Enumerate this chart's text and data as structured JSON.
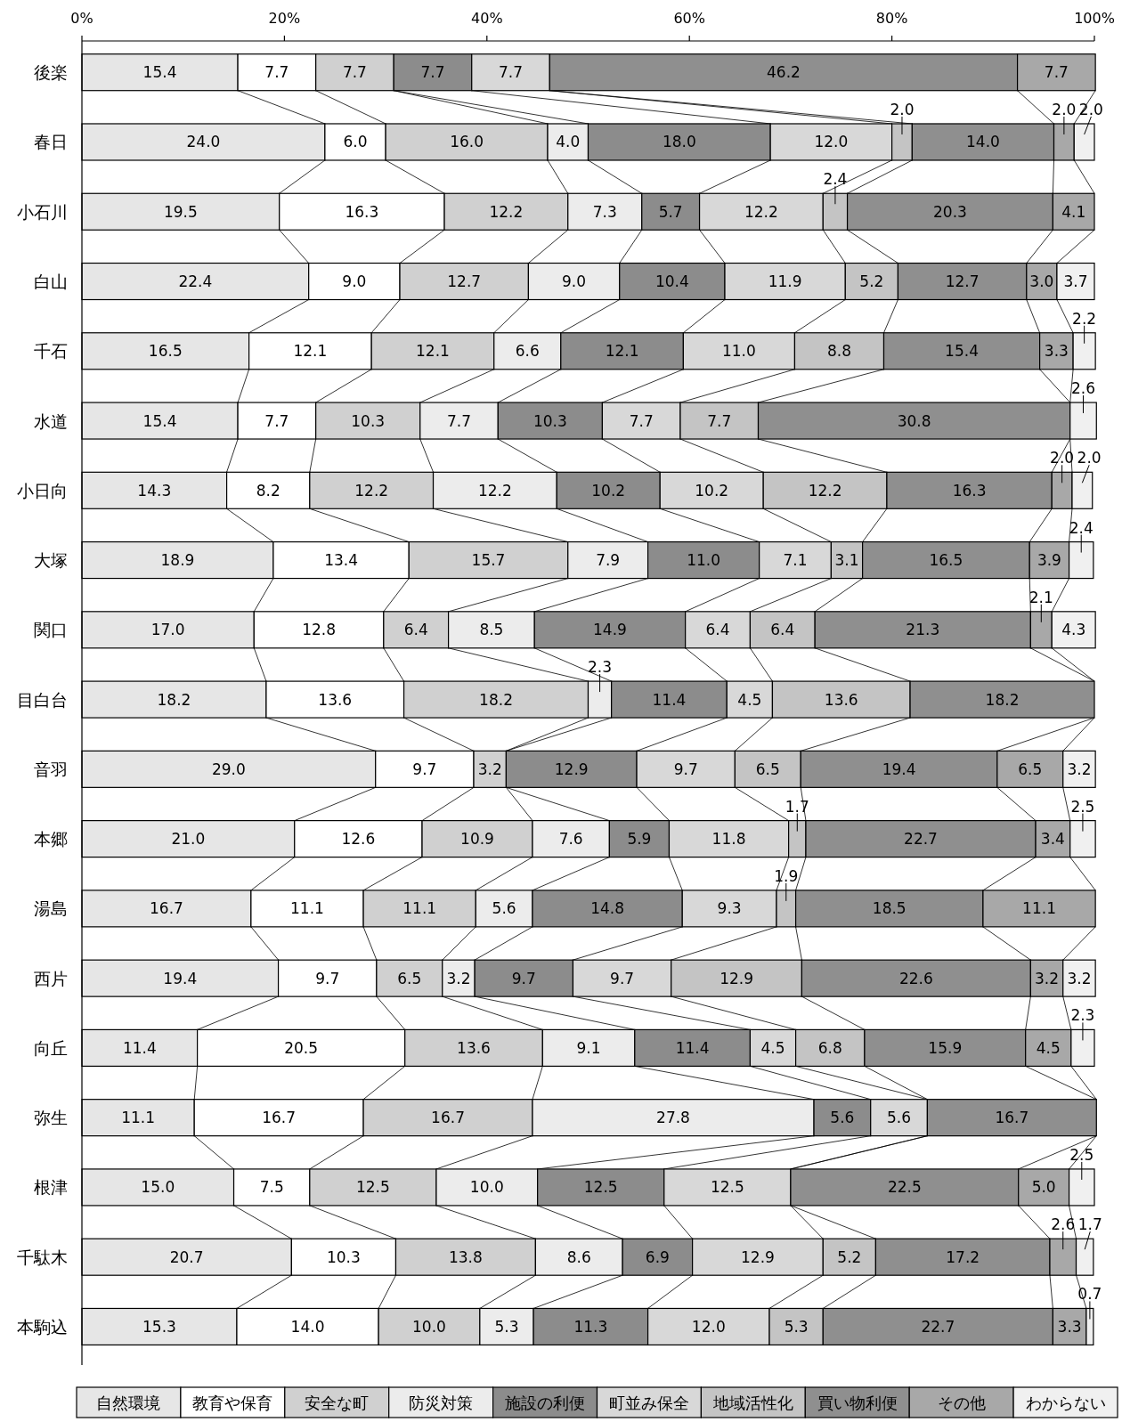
{
  "chart_data": {
    "type": "bar",
    "orientation": "horizontal",
    "stacked": true,
    "legend": "bottom",
    "categories": [
      "後楽",
      "春日",
      "小石川",
      "白山",
      "千石",
      "水道",
      "小日向",
      "大塚",
      "関口",
      "目白台",
      "音羽",
      "本郷",
      "湯島",
      "西片",
      "向丘",
      "弥生",
      "根津",
      "千駄木",
      "本駒込"
    ],
    "xlim": [
      0,
      100
    ],
    "xticks": [
      {
        "value": 0,
        "label": "0%"
      },
      {
        "value": 20,
        "label": "20%"
      },
      {
        "value": 40,
        "label": "40%"
      },
      {
        "value": 60,
        "label": "60%"
      },
      {
        "value": 80,
        "label": "80%"
      },
      {
        "value": 100,
        "label": "100%"
      }
    ],
    "series": [
      {
        "name": "自然環境",
        "color": "#e6e6e6",
        "values": [
          15.4,
          24.0,
          19.5,
          22.4,
          16.5,
          15.4,
          14.3,
          18.9,
          17.0,
          18.2,
          29.0,
          21.0,
          16.7,
          19.4,
          11.4,
          11.1,
          15.0,
          20.7,
          15.3
        ],
        "value_labels": [
          "15.4",
          "24.0",
          "19.5",
          "22.4",
          "16.5",
          "15.4",
          "14.3",
          "18.9",
          "17.0",
          "18.2",
          "29.0",
          "21.0",
          "16.7",
          "19.4",
          "11.4",
          "11.1",
          "15.0",
          "20.7",
          "15.3"
        ]
      },
      {
        "name": "教育や保育",
        "color": "#ffffff",
        "values": [
          7.7,
          6.0,
          16.3,
          9.0,
          12.1,
          7.7,
          8.2,
          13.4,
          12.8,
          13.6,
          9.7,
          12.6,
          11.1,
          9.7,
          20.5,
          16.7,
          7.5,
          10.3,
          14.0
        ],
        "value_labels": [
          "7.7",
          "6.0",
          "16.3",
          "9.0",
          "12.1",
          "7.7",
          "8.2",
          "13.4",
          "12.8",
          "13.6",
          "9.7",
          "12.6",
          "11.1",
          "9.7",
          "20.5",
          "16.7",
          "7.5",
          "10.3",
          "14.0"
        ]
      },
      {
        "name": "安全な町",
        "color": "#d0d0d0",
        "values": [
          7.7,
          16.0,
          12.2,
          12.7,
          12.1,
          10.3,
          12.2,
          15.7,
          6.4,
          18.2,
          3.2,
          10.9,
          11.1,
          6.5,
          13.6,
          16.7,
          12.5,
          13.8,
          10.0
        ],
        "value_labels": [
          "7.7",
          "16.0",
          "12.2",
          "12.7",
          "12.1",
          "10.3",
          "12.2",
          "15.7",
          "6.4",
          "18.2",
          "3.2",
          "10.9",
          "11.1",
          "6.5",
          "13.6",
          "16.7",
          "12.5",
          "13.8",
          "10.0"
        ]
      },
      {
        "name": "防災対策",
        "color": "#ececec",
        "values": [
          null,
          4.0,
          7.3,
          9.0,
          6.6,
          7.7,
          12.2,
          7.9,
          8.5,
          2.3,
          null,
          7.6,
          5.6,
          3.2,
          9.1,
          27.8,
          10.0,
          8.6,
          5.3
        ],
        "value_labels": [
          null,
          "4.0",
          "7.3",
          "9.0",
          "6.6",
          "7.7",
          "12.2",
          "7.9",
          "8.5",
          "2.3",
          null,
          "7.6",
          "5.6",
          "3.2",
          "9.1",
          "27.8",
          "10.0",
          "8.6",
          "5.3"
        ]
      },
      {
        "name": "施設の利便",
        "color": "#8c8c8c",
        "values": [
          7.7,
          18.0,
          5.7,
          10.4,
          12.1,
          10.3,
          10.2,
          11.0,
          14.9,
          11.4,
          12.9,
          5.9,
          14.8,
          9.7,
          11.4,
          5.6,
          12.5,
          6.9,
          11.3
        ],
        "value_labels": [
          "7.7",
          "18.0",
          "5.7",
          "10.4",
          "12.1",
          "10.3",
          "10.2",
          "11.0",
          "14.9",
          "11.4",
          "12.9",
          "5.9",
          "14.8",
          "9.7",
          "11.4",
          "5.6",
          "12.5",
          "6.9",
          "11.3"
        ]
      },
      {
        "name": "町並み保全",
        "color": "#d8d8d8",
        "values": [
          7.7,
          12.0,
          12.2,
          11.9,
          11.0,
          7.7,
          10.2,
          7.1,
          6.4,
          4.5,
          9.7,
          11.8,
          9.3,
          9.7,
          4.5,
          5.6,
          12.5,
          12.9,
          12.0
        ],
        "value_labels": [
          "7.7",
          "12.0",
          "12.2",
          "11.9",
          "11.0",
          "7.7",
          "10.2",
          "7.1",
          "6.4",
          "4.5",
          "9.7",
          "11.8",
          "9.3",
          "9.7",
          "4.5",
          "5.6",
          "12.5",
          "12.9",
          "12.0"
        ]
      },
      {
        "name": "地域活性化",
        "color": "#c4c4c4",
        "values": [
          null,
          2.0,
          2.4,
          5.2,
          8.8,
          7.7,
          12.2,
          3.1,
          6.4,
          13.6,
          6.5,
          1.7,
          1.9,
          12.9,
          6.8,
          null,
          null,
          5.2,
          5.3
        ],
        "value_labels": [
          null,
          "2.0",
          "2.4",
          "5.2",
          "8.8",
          "7.7",
          "12.2",
          "3.1",
          "6.4",
          "13.6",
          "6.5",
          "1.7",
          "1.9",
          "12.9",
          "6.8",
          null,
          null,
          "5.2",
          "5.3"
        ]
      },
      {
        "name": "買い物利便",
        "color": "#8f8f8f",
        "values": [
          46.2,
          14.0,
          20.3,
          12.7,
          15.4,
          30.8,
          16.3,
          16.5,
          21.3,
          18.2,
          19.4,
          22.7,
          18.5,
          22.6,
          15.9,
          16.7,
          22.5,
          17.2,
          22.7
        ],
        "value_labels": [
          "46.2",
          "14.0",
          "20.3",
          "12.7",
          "15.4",
          "30.8",
          "16.3",
          "16.5",
          "21.3",
          "18.2",
          "19.4",
          "22.7",
          "18.5",
          "22.6",
          "15.9",
          "16.7",
          "22.5",
          "17.2",
          "22.7"
        ]
      },
      {
        "name": "その他",
        "color": "#a8a8a8",
        "values": [
          7.7,
          2.0,
          4.1,
          3.0,
          3.3,
          null,
          2.0,
          3.9,
          2.1,
          null,
          6.5,
          3.4,
          11.1,
          3.2,
          4.5,
          null,
          5.0,
          2.6,
          3.3
        ],
        "value_labels": [
          "7.7",
          "2.0",
          "4.1",
          "3.0",
          "3.3",
          null,
          "2.0",
          "3.9",
          "2.1",
          null,
          "6.5",
          "3.4",
          "11.1",
          "3.2",
          "4.5",
          null,
          "5.0",
          "2.6",
          "3.3"
        ]
      },
      {
        "name": "わからない",
        "color": "#f0f0f0",
        "values": [
          null,
          2.0,
          null,
          3.7,
          2.2,
          2.6,
          2.0,
          2.4,
          4.3,
          null,
          3.2,
          2.5,
          null,
          3.2,
          2.3,
          null,
          2.5,
          1.7,
          0.7
        ],
        "value_labels": [
          null,
          "2.0",
          null,
          "3.7",
          "2.2",
          "2.6",
          "2.0",
          "2.4",
          "4.3",
          null,
          "3.2",
          "2.5",
          null,
          "3.2",
          "2.3",
          null,
          "2.5",
          "1.7",
          "0.7"
        ]
      }
    ]
  }
}
